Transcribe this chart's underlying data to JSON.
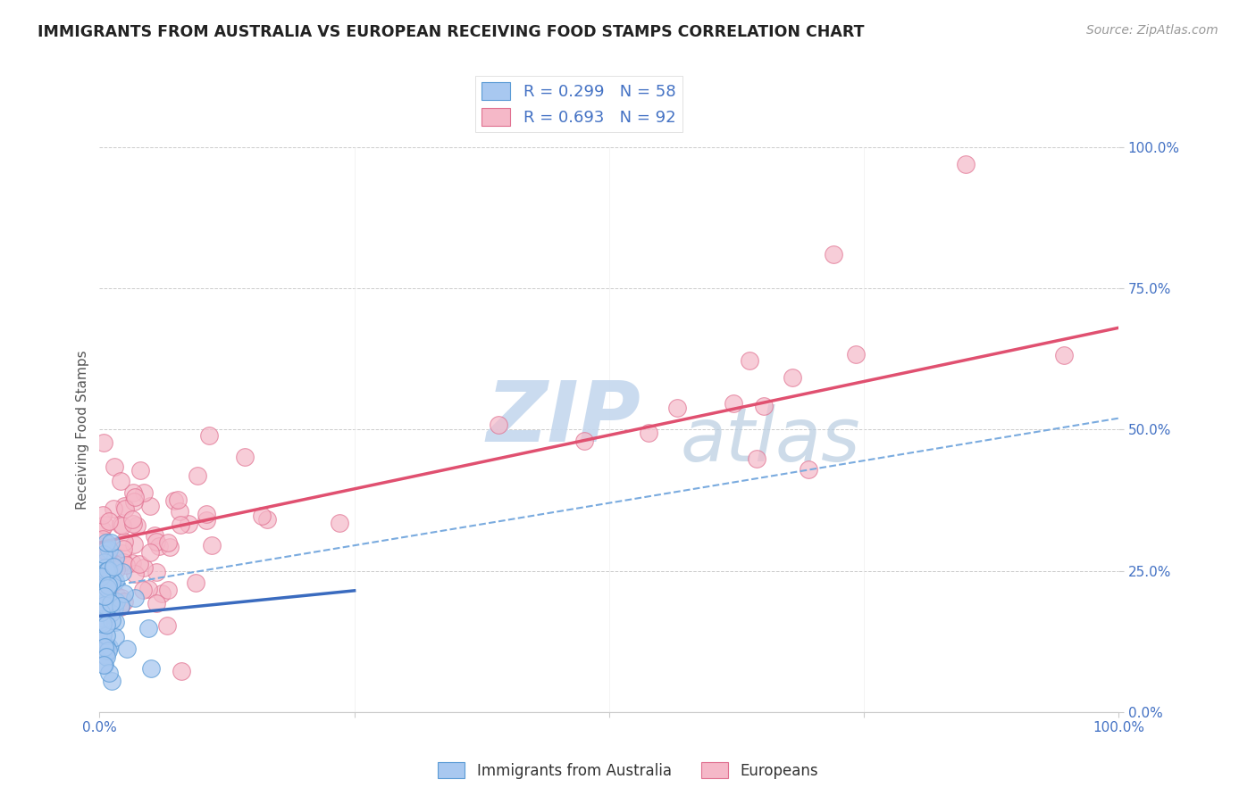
{
  "title": "IMMIGRANTS FROM AUSTRALIA VS EUROPEAN RECEIVING FOOD STAMPS CORRELATION CHART",
  "source": "Source: ZipAtlas.com",
  "ylabel": "Receiving Food Stamps",
  "xlim": [
    0,
    1
  ],
  "ylim": [
    0,
    1
  ],
  "xticks": [
    0,
    0.25,
    0.5,
    0.75,
    1.0
  ],
  "yticks": [
    0,
    0.25,
    0.5,
    0.75,
    1.0
  ],
  "xtick_labels": [
    "0.0%",
    "",
    "",
    "",
    "100.0%"
  ],
  "ytick_labels": [
    "0.0%",
    "25.0%",
    "50.0%",
    "75.0%",
    "100.0%"
  ],
  "series": [
    {
      "name": "Immigrants from Australia",
      "R": 0.299,
      "N": 58,
      "face_color": "#a8c8f0",
      "edge_color": "#5b9bd5",
      "trend_color": "#3a6bbf",
      "trend_slope": 0.18,
      "trend_intercept": 0.17
    },
    {
      "name": "Europeans",
      "R": 0.693,
      "N": 92,
      "face_color": "#f5b8c8",
      "edge_color": "#e07090",
      "trend_color": "#e05070",
      "trend_slope": 0.38,
      "trend_intercept": 0.3
    }
  ],
  "dashed_color": "#7aabdf",
  "watermark": "ZIPAtlas",
  "watermark_color": "#d5e5f5",
  "background_color": "#ffffff",
  "grid_color": "#e8e8e8",
  "title_color": "#222222",
  "axis_label_color": "#555555",
  "tick_color": "#4472c4",
  "source_color": "#999999"
}
